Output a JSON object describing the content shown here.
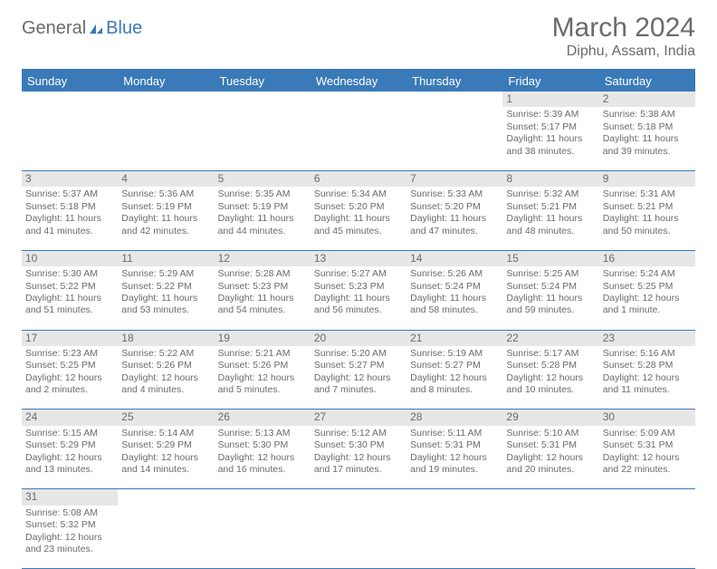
{
  "logo": {
    "part1": "General",
    "part2": "Blue"
  },
  "title": "March 2024",
  "location": "Diphu, Assam, India",
  "colors": {
    "header_bg": "#3a7ab8",
    "header_text": "#ffffff",
    "daynum_bg": "#e7e7e7",
    "border": "#3a7ab8",
    "text": "#6b6b6b",
    "page_bg": "#ffffff"
  },
  "day_headers": [
    "Sunday",
    "Monday",
    "Tuesday",
    "Wednesday",
    "Thursday",
    "Friday",
    "Saturday"
  ],
  "weeks": [
    [
      null,
      null,
      null,
      null,
      null,
      {
        "n": "1",
        "sr": "Sunrise: 5:39 AM",
        "ss": "Sunset: 5:17 PM",
        "dl1": "Daylight: 11 hours",
        "dl2": "and 38 minutes."
      },
      {
        "n": "2",
        "sr": "Sunrise: 5:38 AM",
        "ss": "Sunset: 5:18 PM",
        "dl1": "Daylight: 11 hours",
        "dl2": "and 39 minutes."
      }
    ],
    [
      {
        "n": "3",
        "sr": "Sunrise: 5:37 AM",
        "ss": "Sunset: 5:18 PM",
        "dl1": "Daylight: 11 hours",
        "dl2": "and 41 minutes."
      },
      {
        "n": "4",
        "sr": "Sunrise: 5:36 AM",
        "ss": "Sunset: 5:19 PM",
        "dl1": "Daylight: 11 hours",
        "dl2": "and 42 minutes."
      },
      {
        "n": "5",
        "sr": "Sunrise: 5:35 AM",
        "ss": "Sunset: 5:19 PM",
        "dl1": "Daylight: 11 hours",
        "dl2": "and 44 minutes."
      },
      {
        "n": "6",
        "sr": "Sunrise: 5:34 AM",
        "ss": "Sunset: 5:20 PM",
        "dl1": "Daylight: 11 hours",
        "dl2": "and 45 minutes."
      },
      {
        "n": "7",
        "sr": "Sunrise: 5:33 AM",
        "ss": "Sunset: 5:20 PM",
        "dl1": "Daylight: 11 hours",
        "dl2": "and 47 minutes."
      },
      {
        "n": "8",
        "sr": "Sunrise: 5:32 AM",
        "ss": "Sunset: 5:21 PM",
        "dl1": "Daylight: 11 hours",
        "dl2": "and 48 minutes."
      },
      {
        "n": "9",
        "sr": "Sunrise: 5:31 AM",
        "ss": "Sunset: 5:21 PM",
        "dl1": "Daylight: 11 hours",
        "dl2": "and 50 minutes."
      }
    ],
    [
      {
        "n": "10",
        "sr": "Sunrise: 5:30 AM",
        "ss": "Sunset: 5:22 PM",
        "dl1": "Daylight: 11 hours",
        "dl2": "and 51 minutes."
      },
      {
        "n": "11",
        "sr": "Sunrise: 5:29 AM",
        "ss": "Sunset: 5:22 PM",
        "dl1": "Daylight: 11 hours",
        "dl2": "and 53 minutes."
      },
      {
        "n": "12",
        "sr": "Sunrise: 5:28 AM",
        "ss": "Sunset: 5:23 PM",
        "dl1": "Daylight: 11 hours",
        "dl2": "and 54 minutes."
      },
      {
        "n": "13",
        "sr": "Sunrise: 5:27 AM",
        "ss": "Sunset: 5:23 PM",
        "dl1": "Daylight: 11 hours",
        "dl2": "and 56 minutes."
      },
      {
        "n": "14",
        "sr": "Sunrise: 5:26 AM",
        "ss": "Sunset: 5:24 PM",
        "dl1": "Daylight: 11 hours",
        "dl2": "and 58 minutes."
      },
      {
        "n": "15",
        "sr": "Sunrise: 5:25 AM",
        "ss": "Sunset: 5:24 PM",
        "dl1": "Daylight: 11 hours",
        "dl2": "and 59 minutes."
      },
      {
        "n": "16",
        "sr": "Sunrise: 5:24 AM",
        "ss": "Sunset: 5:25 PM",
        "dl1": "Daylight: 12 hours",
        "dl2": "and 1 minute."
      }
    ],
    [
      {
        "n": "17",
        "sr": "Sunrise: 5:23 AM",
        "ss": "Sunset: 5:25 PM",
        "dl1": "Daylight: 12 hours",
        "dl2": "and 2 minutes."
      },
      {
        "n": "18",
        "sr": "Sunrise: 5:22 AM",
        "ss": "Sunset: 5:26 PM",
        "dl1": "Daylight: 12 hours",
        "dl2": "and 4 minutes."
      },
      {
        "n": "19",
        "sr": "Sunrise: 5:21 AM",
        "ss": "Sunset: 5:26 PM",
        "dl1": "Daylight: 12 hours",
        "dl2": "and 5 minutes."
      },
      {
        "n": "20",
        "sr": "Sunrise: 5:20 AM",
        "ss": "Sunset: 5:27 PM",
        "dl1": "Daylight: 12 hours",
        "dl2": "and 7 minutes."
      },
      {
        "n": "21",
        "sr": "Sunrise: 5:19 AM",
        "ss": "Sunset: 5:27 PM",
        "dl1": "Daylight: 12 hours",
        "dl2": "and 8 minutes."
      },
      {
        "n": "22",
        "sr": "Sunrise: 5:17 AM",
        "ss": "Sunset: 5:28 PM",
        "dl1": "Daylight: 12 hours",
        "dl2": "and 10 minutes."
      },
      {
        "n": "23",
        "sr": "Sunrise: 5:16 AM",
        "ss": "Sunset: 5:28 PM",
        "dl1": "Daylight: 12 hours",
        "dl2": "and 11 minutes."
      }
    ],
    [
      {
        "n": "24",
        "sr": "Sunrise: 5:15 AM",
        "ss": "Sunset: 5:29 PM",
        "dl1": "Daylight: 12 hours",
        "dl2": "and 13 minutes."
      },
      {
        "n": "25",
        "sr": "Sunrise: 5:14 AM",
        "ss": "Sunset: 5:29 PM",
        "dl1": "Daylight: 12 hours",
        "dl2": "and 14 minutes."
      },
      {
        "n": "26",
        "sr": "Sunrise: 5:13 AM",
        "ss": "Sunset: 5:30 PM",
        "dl1": "Daylight: 12 hours",
        "dl2": "and 16 minutes."
      },
      {
        "n": "27",
        "sr": "Sunrise: 5:12 AM",
        "ss": "Sunset: 5:30 PM",
        "dl1": "Daylight: 12 hours",
        "dl2": "and 17 minutes."
      },
      {
        "n": "28",
        "sr": "Sunrise: 5:11 AM",
        "ss": "Sunset: 5:31 PM",
        "dl1": "Daylight: 12 hours",
        "dl2": "and 19 minutes."
      },
      {
        "n": "29",
        "sr": "Sunrise: 5:10 AM",
        "ss": "Sunset: 5:31 PM",
        "dl1": "Daylight: 12 hours",
        "dl2": "and 20 minutes."
      },
      {
        "n": "30",
        "sr": "Sunrise: 5:09 AM",
        "ss": "Sunset: 5:31 PM",
        "dl1": "Daylight: 12 hours",
        "dl2": "and 22 minutes."
      }
    ],
    [
      {
        "n": "31",
        "sr": "Sunrise: 5:08 AM",
        "ss": "Sunset: 5:32 PM",
        "dl1": "Daylight: 12 hours",
        "dl2": "and 23 minutes."
      },
      null,
      null,
      null,
      null,
      null,
      null
    ]
  ]
}
